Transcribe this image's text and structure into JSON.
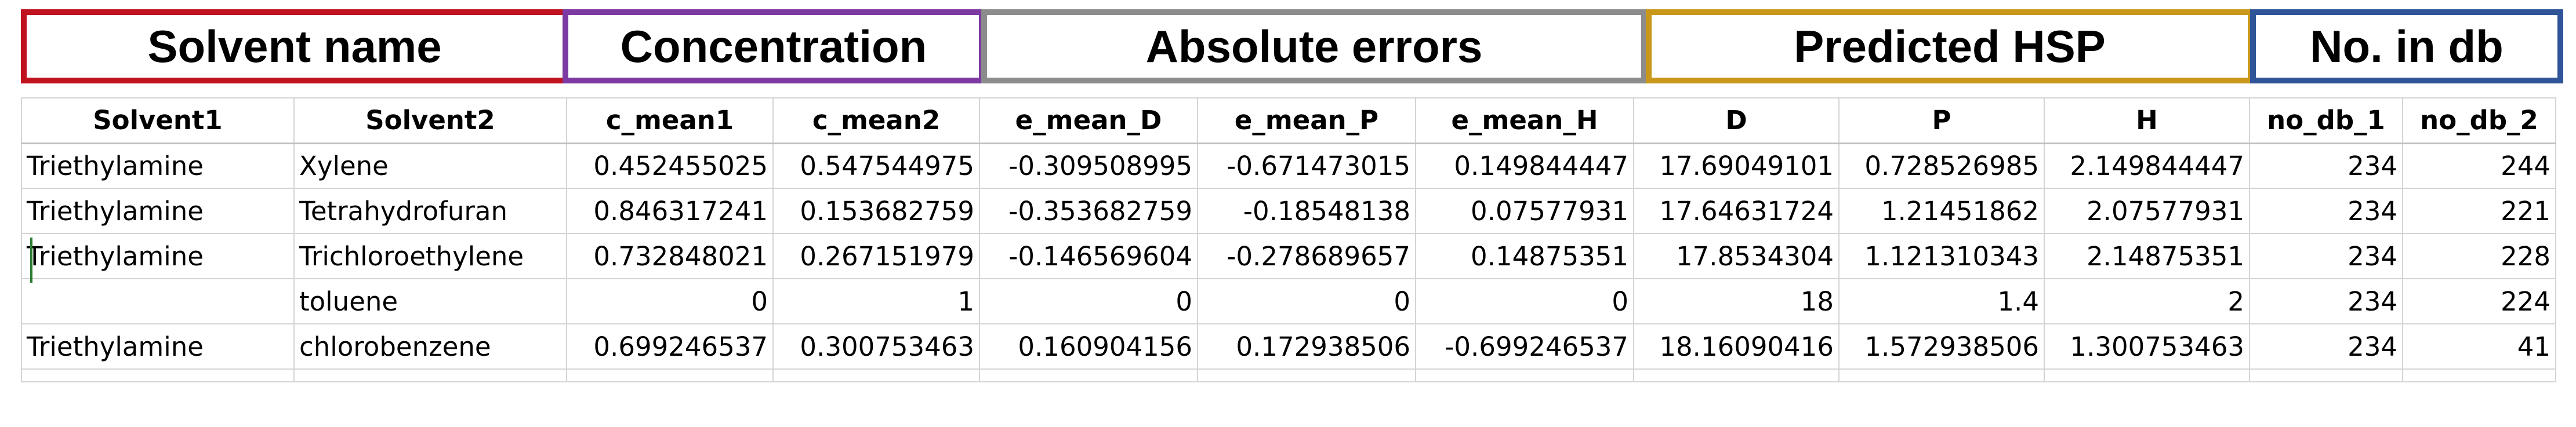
{
  "group_headers": {
    "solvent_name": "Solvent name",
    "concentration": "Concentration",
    "absolute_errors": "Absolute errors",
    "predicted_hsp": "Predicted HSP",
    "no_in_db": "No. in db"
  },
  "colors": {
    "solvent_name": "#c0121f",
    "concentration": "#7d3aa3",
    "absolute_errors": "#8c8c8c",
    "predicted_hsp": "#c9981b",
    "no_in_db": "#2f5598"
  },
  "table": {
    "columns": [
      "Solvent1",
      "Solvent2",
      "c_mean1",
      "c_mean2",
      "e_mean_D",
      "e_mean_P",
      "e_mean_H",
      "D",
      "P",
      "H",
      "no_db_1",
      "no_db_2"
    ],
    "rows": [
      [
        "Triethylamine",
        "Xylene",
        "0.452455025",
        "0.547544975",
        "-0.309508995",
        "-0.671473015",
        "0.149844447",
        "17.69049101",
        "0.728526985",
        "2.149844447",
        "234",
        "244"
      ],
      [
        "Triethylamine",
        "Tetrahydrofuran",
        "0.846317241",
        "0.153682759",
        "-0.353682759",
        "-0.18548138",
        "0.07577931",
        "17.64631724",
        "1.21451862",
        "2.07577931",
        "234",
        "221"
      ],
      [
        "Triethylamine",
        "Trichloroethylene",
        "0.732848021",
        "0.267151979",
        "-0.146569604",
        "-0.278689657",
        "0.14875351",
        "17.8534304",
        "1.121310343",
        "2.14875351",
        "234",
        "228"
      ],
      [
        "",
        "toluene",
        "0",
        "1",
        "0",
        "0",
        "0",
        "18",
        "1.4",
        "2",
        "234",
        "224"
      ],
      [
        "Triethylamine",
        "chlorobenzene",
        "0.699246537",
        "0.300753463",
        "0.160904156",
        "0.172938506",
        "-0.699246537",
        "18.16090416",
        "1.572938506",
        "1.300753463",
        "234",
        "41"
      ]
    ]
  }
}
